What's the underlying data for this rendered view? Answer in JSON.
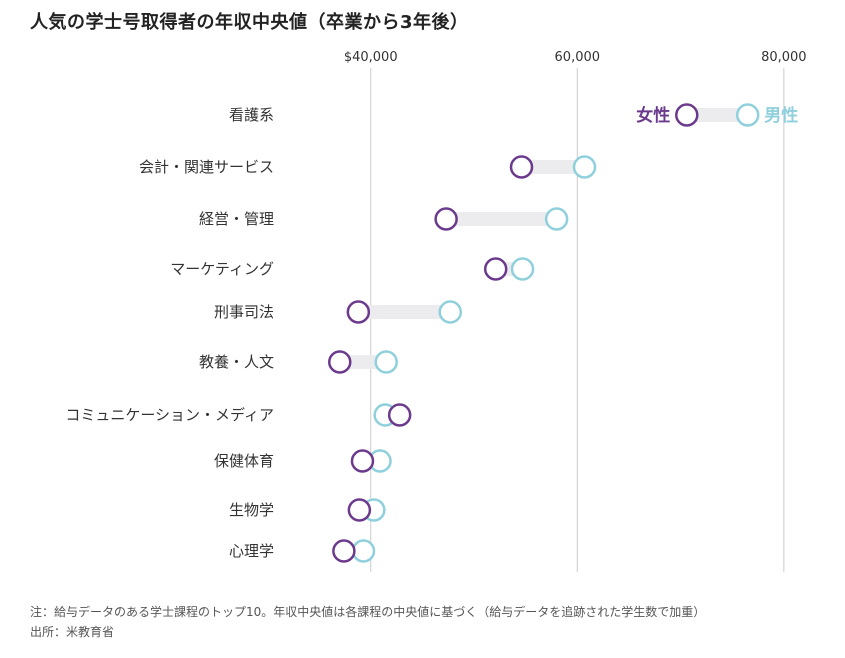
{
  "title": "人気の学士号取得者の年収中央値（卒業から3年後）",
  "footnote": {
    "note": "注：給与データのある学士課程のトップ10。年収中央値は各課程の中央値に基づく（給与データを追跡された学生数で加重）",
    "source": "出所：米教育省"
  },
  "colors": {
    "female": "#6b3a8c",
    "male": "#8fd0dc",
    "connector": "#ececee",
    "gridline": "#cccccc"
  },
  "chart_data": {
    "type": "dumbbell",
    "xlim": [
      22500,
      83500
    ],
    "x_ticks": [
      {
        "value": 40000,
        "label": "$40,000"
      },
      {
        "value": 60000,
        "label": "60,000"
      },
      {
        "value": 80000,
        "label": "80,000"
      }
    ],
    "grid": true,
    "legend": {
      "female": "女性",
      "male": "男性"
    },
    "categories": [
      "看護系",
      "会計・関連サービス",
      "経営・管理",
      "マーケティング",
      "刑事司法",
      "教養・人文",
      "コミュニケーション・メディア",
      "保健体育",
      "生物学",
      "心理学"
    ],
    "series": [
      {
        "name": "女性",
        "values": [
          70600,
          54600,
          47300,
          52100,
          38800,
          37000,
          42800,
          39200,
          38900,
          37400
        ]
      },
      {
        "name": "男性",
        "values": [
          76500,
          60700,
          58000,
          54700,
          47700,
          41500,
          41400,
          40900,
          40300,
          39300
        ]
      }
    ]
  }
}
